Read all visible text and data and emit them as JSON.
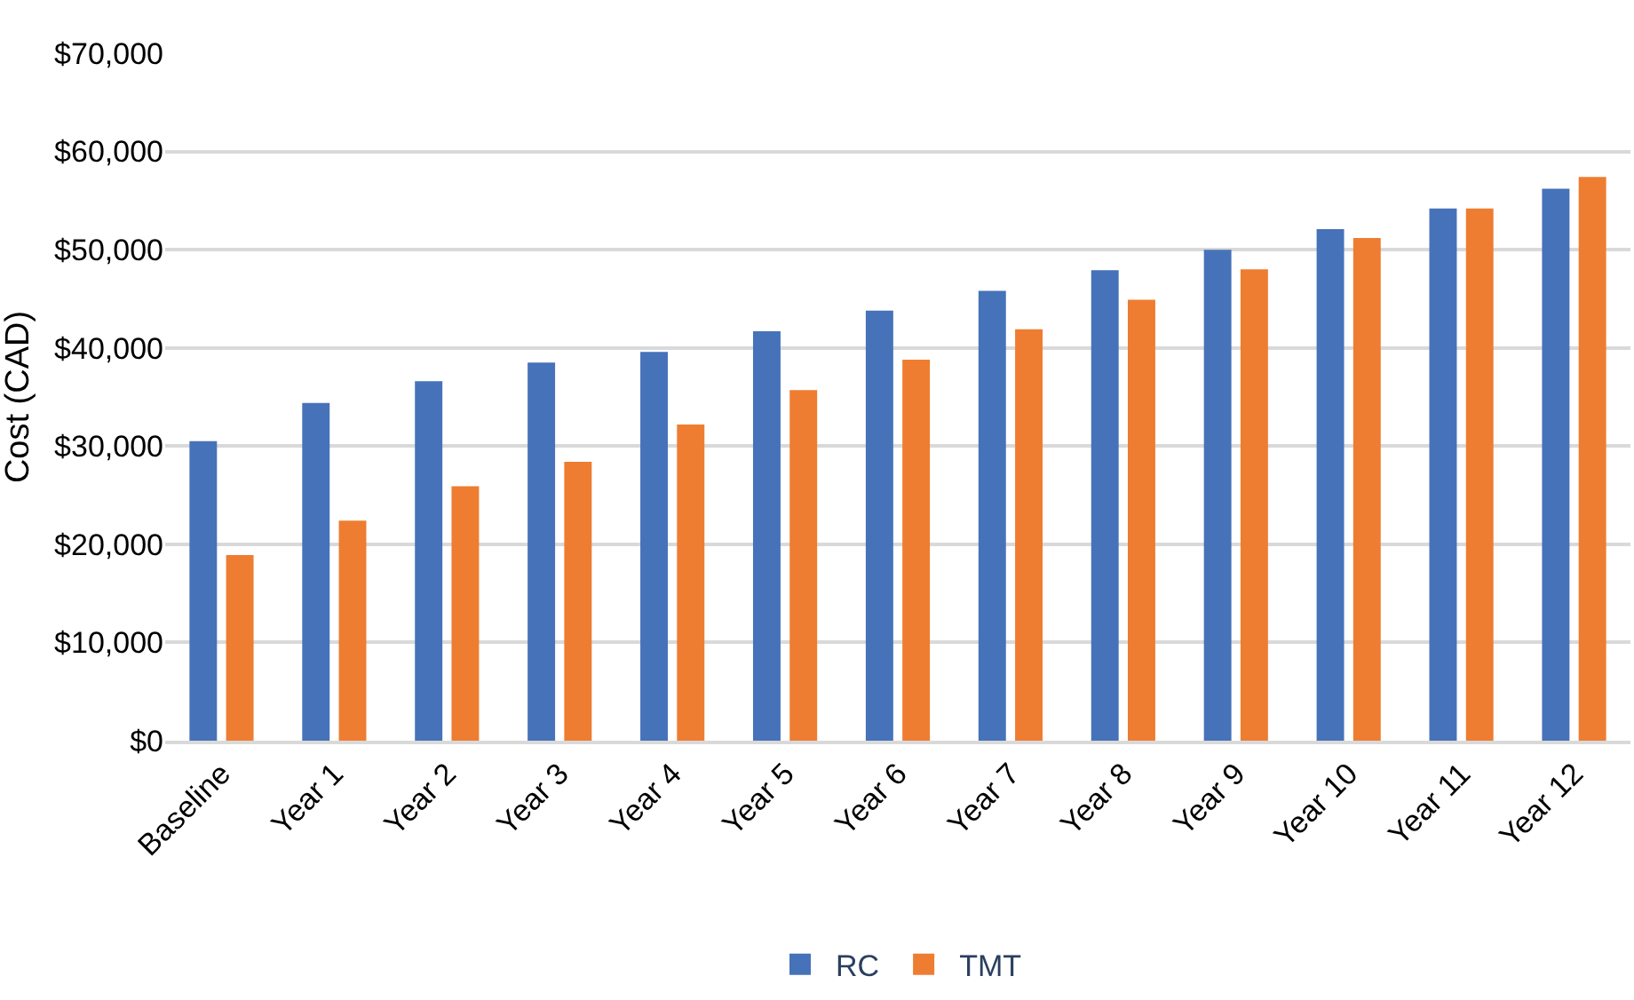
{
  "chart_data": {
    "type": "bar",
    "ylabel": "Cost (CAD)",
    "categories": [
      "Baseline",
      "Year 1",
      "Year 2",
      "Year 3",
      "Year 4",
      "Year 5",
      "Year 6",
      "Year 7",
      "Year 8",
      "Year 9",
      "Year 10",
      "Year 11",
      "Year 12"
    ],
    "series": [
      {
        "name": "RC",
        "color": "#4672b9",
        "values": [
          30500,
          34400,
          36600,
          38500,
          39600,
          41700,
          43800,
          45800,
          47900,
          50000,
          52100,
          54200,
          56200
        ]
      },
      {
        "name": "TMT",
        "color": "#ee7d31",
        "values": [
          18900,
          22400,
          25900,
          28400,
          32200,
          35700,
          38800,
          41900,
          44900,
          48000,
          51200,
          54200,
          57400
        ]
      }
    ],
    "ylim": [
      0,
      70000
    ],
    "yticks": [
      {
        "value": 0,
        "label": "$0"
      },
      {
        "value": 10000,
        "label": "$10,000"
      },
      {
        "value": 20000,
        "label": "$20,000"
      },
      {
        "value": 30000,
        "label": "$30,000"
      },
      {
        "value": 40000,
        "label": "$40,000"
      },
      {
        "value": 50000,
        "label": "$50,000"
      },
      {
        "value": 60000,
        "label": "$60,000"
      },
      {
        "value": 70000,
        "label": "$70,000"
      }
    ],
    "grid": "y",
    "legend": "bottom"
  }
}
